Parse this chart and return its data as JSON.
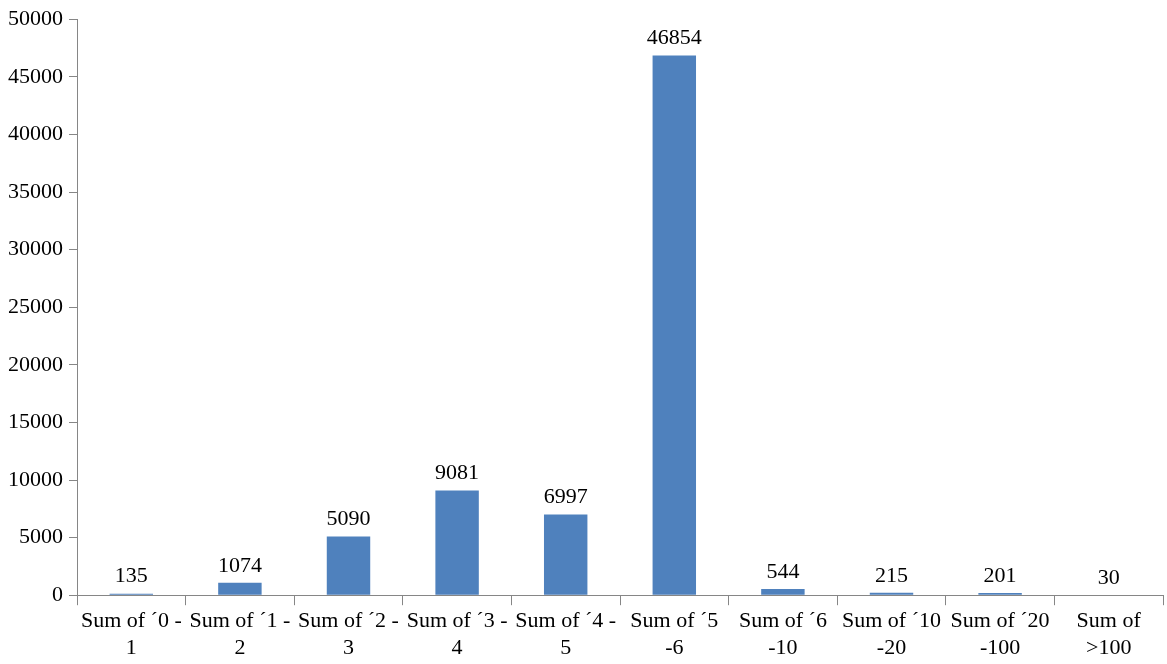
{
  "chart_data": {
    "type": "bar",
    "categories": [
      "Sum of ´0 - 1",
      "Sum of ´1 - 2",
      "Sum of ´2 - 3",
      "Sum of ´3 - 4",
      "Sum of ´4 - 5",
      "Sum of ´5 -6",
      "Sum of ´6 -10",
      "Sum of ´10 -20",
      "Sum of ´20 -100",
      "Sum of >100"
    ],
    "values": [
      135,
      1074,
      5090,
      9081,
      6997,
      46854,
      544,
      215,
      201,
      30
    ],
    "color": "#4f81bd",
    "ylim": [
      0,
      50000
    ],
    "yticks": [
      0,
      5000,
      10000,
      15000,
      20000,
      25000,
      30000,
      35000,
      40000,
      45000,
      50000
    ],
    "grid": false,
    "legend": false,
    "data_labels": true
  }
}
